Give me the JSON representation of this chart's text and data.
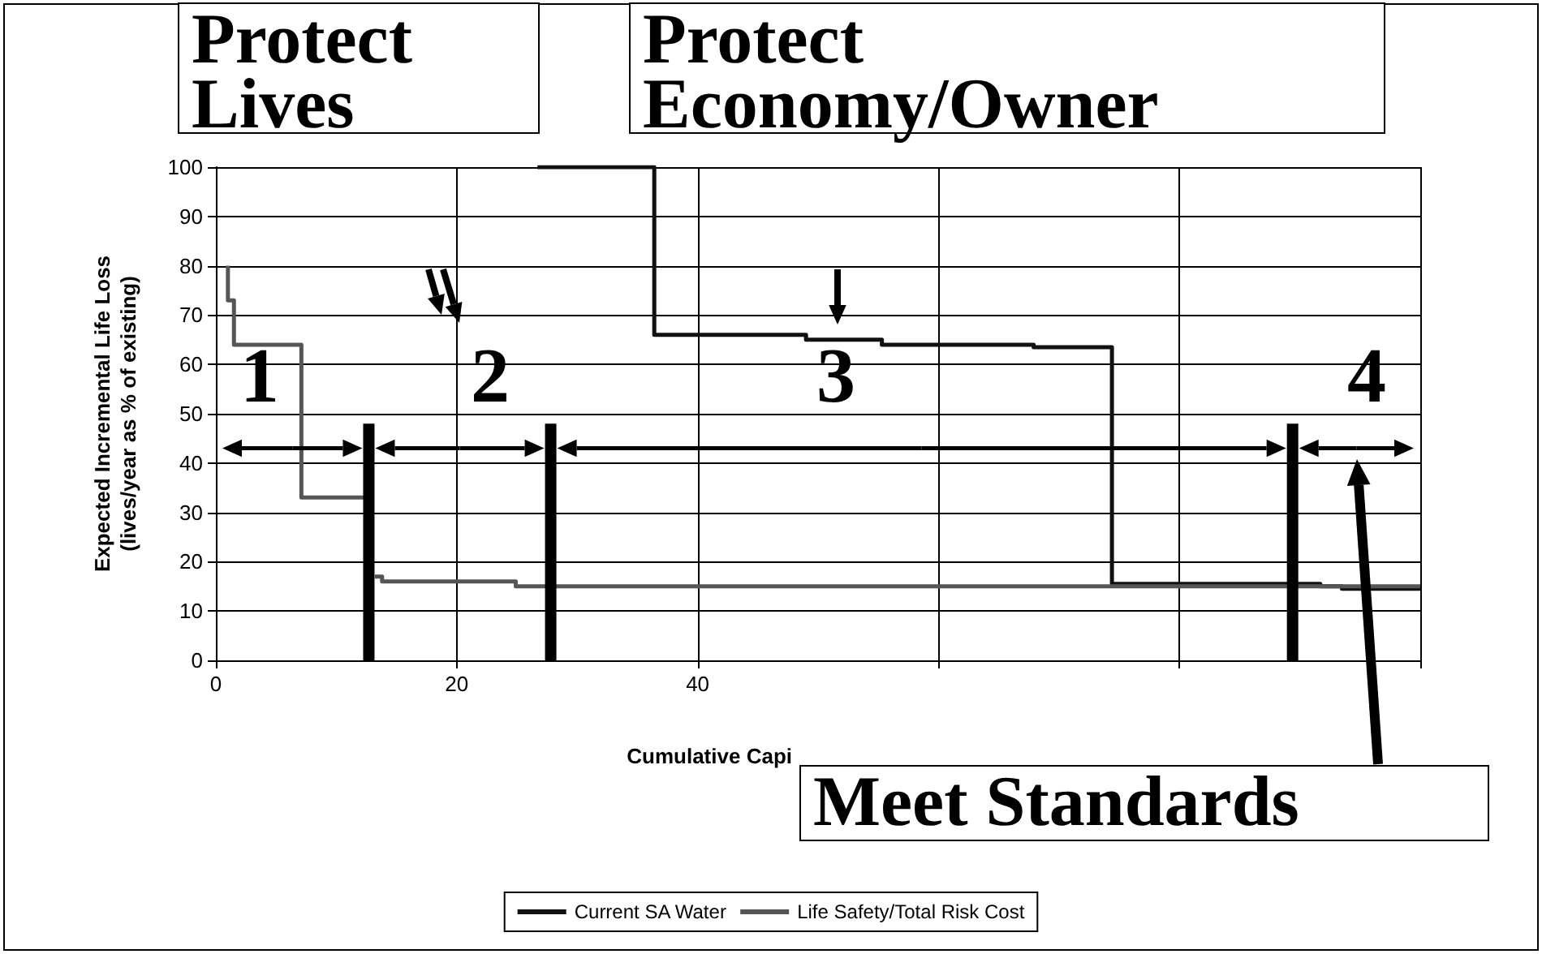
{
  "chart_data": {
    "type": "line",
    "xlabel": "Cumulative Capi",
    "ylabel": "Expected Incremental Life Loss\n(lives/year as % of existing)",
    "xlim": [
      0,
      100
    ],
    "ylim": [
      0,
      100
    ],
    "xticks": [
      0,
      20,
      40,
      {
        "value": 60,
        "label": null
      },
      {
        "value": 80,
        "label": null
      },
      {
        "value": 100,
        "label": null
      }
    ],
    "yticks": [
      0,
      10,
      20,
      30,
      40,
      50,
      60,
      70,
      80,
      90,
      100
    ],
    "grid": true,
    "legend": "bottom",
    "marker": "none",
    "line_style": "solid",
    "series": [
      {
        "name": "Current SA Water",
        "color": "#111111",
        "x": [
          26.7,
          36.4,
          36.4,
          49,
          49,
          55.3,
          55.3,
          67.9,
          67.9,
          74.4,
          74.4,
          91.7,
          91.7,
          93.5,
          93.5,
          100
        ],
        "values": [
          100,
          100,
          66,
          66,
          65,
          65,
          64,
          64,
          63.5,
          63.5,
          15.5,
          15.5,
          15,
          15,
          14.5,
          14.5
        ]
      },
      {
        "name": "Life Safety/Total Risk Cost",
        "color": "#555555",
        "x": [
          1,
          1,
          1.5,
          1.5,
          7.1,
          7.1,
          12.3,
          null,
          13.2,
          13.8,
          13.8,
          24.9,
          24.9,
          100
        ],
        "values": [
          80,
          73,
          73,
          64,
          64,
          33,
          33,
          null,
          17,
          17,
          16,
          16,
          15,
          15
        ]
      },
      {
        "type": "line",
        "color": "#000000",
        "x": [
          12.7,
          12.7
        ],
        "values": [
          0,
          48
        ]
      },
      {
        "type": "line",
        "color": "#000000",
        "x": [
          27.8,
          27.8
        ],
        "values": [
          0,
          48
        ]
      },
      {
        "type": "line",
        "color": "#000000",
        "x": [
          89.4,
          89.4
        ],
        "values": [
          0,
          48
        ]
      }
    ],
    "annotations": [
      "Protect Lives",
      "Protect Economy/Owner",
      "Meet Standards",
      "1",
      "2",
      "3",
      "4"
    ]
  }
}
